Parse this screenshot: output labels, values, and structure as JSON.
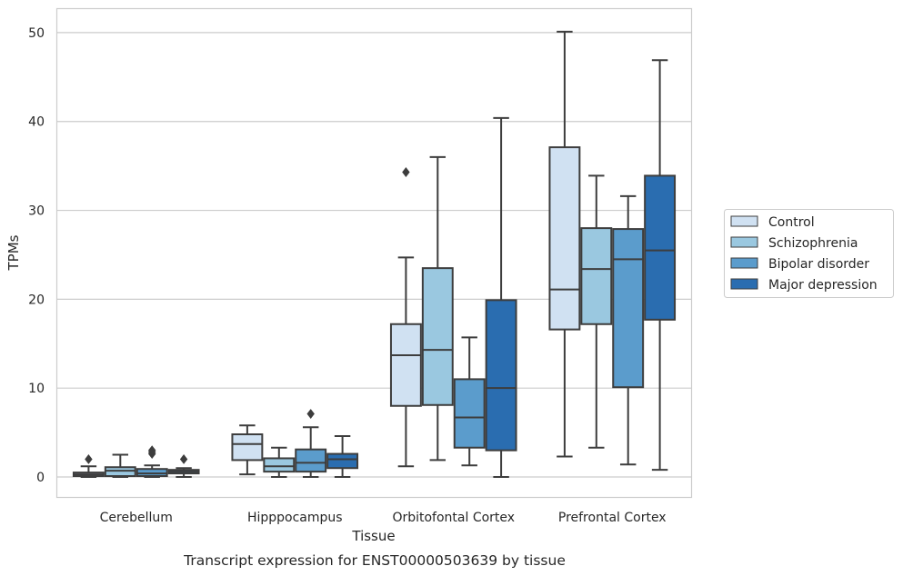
{
  "chart_data": {
    "type": "boxplot",
    "caption": "Transcript expression for ENST00000503639 by tissue",
    "xlabel": "Tissue",
    "ylabel": "TPMs",
    "ylim": [
      -2.3,
      52.7
    ],
    "yticks": [
      0,
      10,
      20,
      30,
      40,
      50
    ],
    "grid": "horizontal",
    "legend_position": "right",
    "categories": [
      "Cerebellum",
      "Hipppocampus",
      "Orbitofontal Cortex",
      "Prefrontal Cortex"
    ],
    "series": [
      {
        "name": "Control",
        "color": "#d0e1f2",
        "boxes": [
          {
            "whisker_low": 0.0,
            "q1": 0.1,
            "median": 0.3,
            "q3": 0.5,
            "whisker_high": 1.2,
            "outliers": [
              2.0
            ]
          },
          {
            "whisker_low": 0.3,
            "q1": 1.9,
            "median": 3.7,
            "q3": 4.8,
            "whisker_high": 5.8,
            "outliers": []
          },
          {
            "whisker_low": 1.2,
            "q1": 8.0,
            "median": 13.7,
            "q3": 17.2,
            "whisker_high": 24.7,
            "outliers": [
              34.3
            ]
          },
          {
            "whisker_low": 2.3,
            "q1": 16.6,
            "median": 21.1,
            "q3": 37.1,
            "whisker_high": 50.1,
            "outliers": []
          }
        ]
      },
      {
        "name": "Schizophrenia",
        "color": "#9ac8e0",
        "boxes": [
          {
            "whisker_low": 0.0,
            "q1": 0.1,
            "median": 0.7,
            "q3": 1.1,
            "whisker_high": 2.5,
            "outliers": []
          },
          {
            "whisker_low": 0.0,
            "q1": 0.6,
            "median": 1.2,
            "q3": 2.1,
            "whisker_high": 3.3,
            "outliers": []
          },
          {
            "whisker_low": 1.9,
            "q1": 8.1,
            "median": 14.3,
            "q3": 23.5,
            "whisker_high": 36.0,
            "outliers": []
          },
          {
            "whisker_low": 3.3,
            "q1": 17.2,
            "median": 23.4,
            "q3": 28.0,
            "whisker_high": 33.9,
            "outliers": []
          }
        ]
      },
      {
        "name": "Bipolar disorder",
        "color": "#5b9ccc",
        "boxes": [
          {
            "whisker_low": 0.0,
            "q1": 0.1,
            "median": 0.4,
            "q3": 0.9,
            "whisker_high": 1.3,
            "outliers": [
              2.6,
              2.8,
              3.0
            ]
          },
          {
            "whisker_low": 0.0,
            "q1": 0.6,
            "median": 1.6,
            "q3": 3.1,
            "whisker_high": 5.6,
            "outliers": [
              7.1
            ]
          },
          {
            "whisker_low": 1.3,
            "q1": 3.3,
            "median": 6.7,
            "q3": 11.0,
            "whisker_high": 15.7,
            "outliers": []
          },
          {
            "whisker_low": 1.4,
            "q1": 10.1,
            "median": 24.5,
            "q3": 27.9,
            "whisker_high": 31.6,
            "outliers": []
          }
        ]
      },
      {
        "name": "Major depression",
        "color": "#2a6db0",
        "boxes": [
          {
            "whisker_low": 0.0,
            "q1": 0.4,
            "median": 0.6,
            "q3": 0.8,
            "whisker_high": 1.0,
            "outliers": [
              2.0
            ]
          },
          {
            "whisker_low": 0.0,
            "q1": 1.0,
            "median": 2.0,
            "q3": 2.6,
            "whisker_high": 4.6,
            "outliers": []
          },
          {
            "whisker_low": 0.0,
            "q1": 3.0,
            "median": 10.0,
            "q3": 19.9,
            "whisker_high": 40.4,
            "outliers": []
          },
          {
            "whisker_low": 0.8,
            "q1": 17.7,
            "median": 25.5,
            "q3": 33.9,
            "whisker_high": 46.9,
            "outliers": []
          }
        ]
      }
    ],
    "colors": {
      "grid": "#cccccc",
      "frame": "#cccccc",
      "box_line": "#3d3d3d",
      "text": "#262626"
    }
  }
}
